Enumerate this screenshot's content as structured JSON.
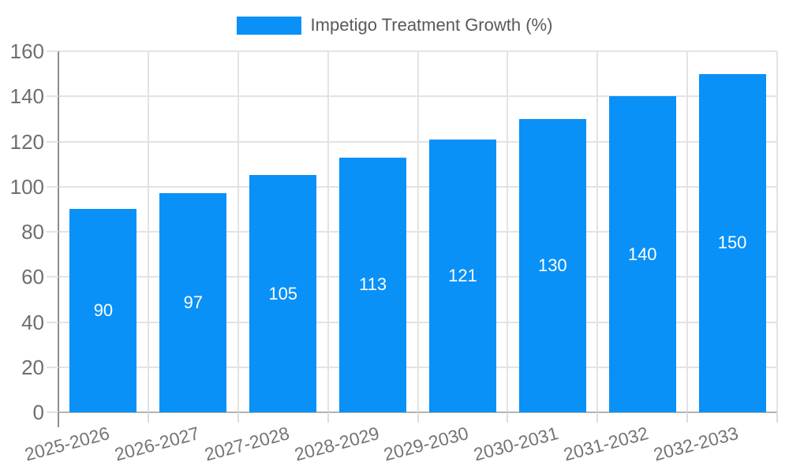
{
  "legend": {
    "label": "Impetigo Treatment Growth (%)"
  },
  "chart_data": {
    "type": "bar",
    "title": "",
    "series_name": "Impetigo Treatment Growth (%)",
    "categories": [
      "2025-2026",
      "2026-2027",
      "2027-2028",
      "2028-2029",
      "2029-2030",
      "2030-2031",
      "2031-2032",
      "2032-2033"
    ],
    "values": [
      90,
      97,
      105,
      113,
      121,
      130,
      140,
      150
    ],
    "bar_labels": [
      "90",
      "97",
      "105",
      "113",
      "121",
      "130",
      "140",
      "150"
    ],
    "xlabel": "",
    "ylabel": "",
    "ylim": [
      0,
      160
    ],
    "yticks": [
      0,
      20,
      40,
      60,
      80,
      100,
      120,
      140,
      160
    ],
    "grid": true,
    "legend_position": "top-center",
    "x_tick_rotation_deg": -15,
    "colors": {
      "bar": "#0991f7",
      "bar_label_text": "#ffffff",
      "gridline": "#e3e3e3",
      "y_axis_line": "#8c8c8c",
      "x_axis_line": "#b3b3b3",
      "tick_mark": "#dcdcdc",
      "y_tick_label": "#6e6e6e",
      "x_tick_label": "#757575",
      "legend_text": "#595959",
      "background": "#ffffff"
    }
  }
}
